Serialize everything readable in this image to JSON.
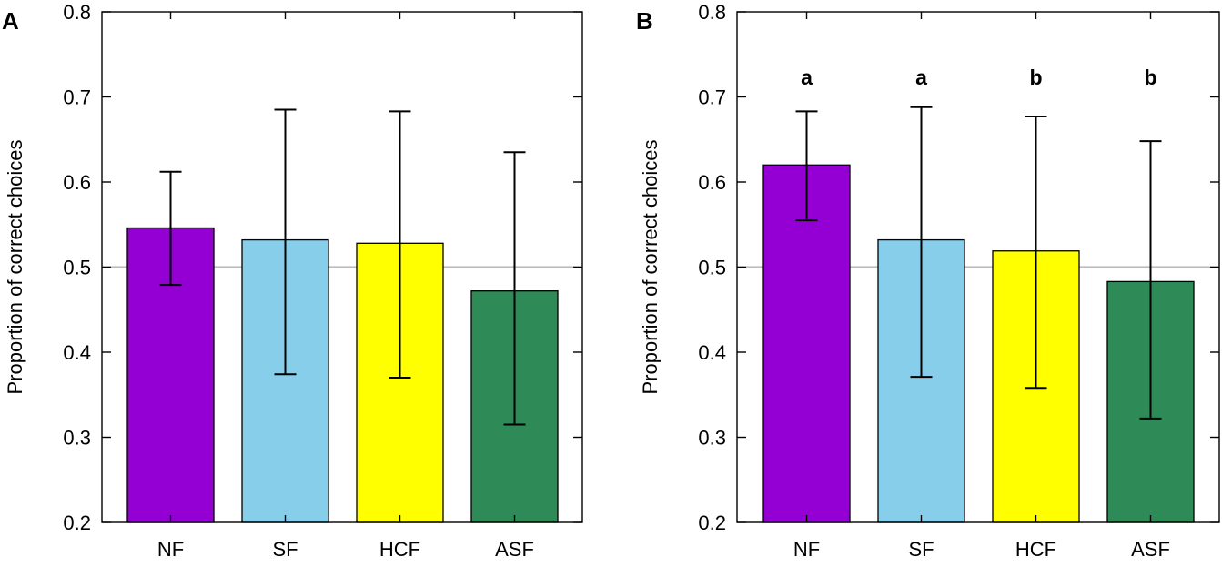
{
  "chart_data": [
    {
      "type": "bar",
      "panel_label": "A",
      "ylabel": "Proportion of correct choices",
      "xlabel": "",
      "ylim": [
        0.2,
        0.8
      ],
      "yticks": [
        "0.2",
        "0.3",
        "0.4",
        "0.5",
        "0.6",
        "0.7",
        "0.8"
      ],
      "reference_line": 0.5,
      "categories": [
        "NF",
        "SF",
        "HCF",
        "ASF"
      ],
      "values": [
        0.546,
        0.532,
        0.528,
        0.472
      ],
      "error_low": [
        0.479,
        0.374,
        0.37,
        0.315
      ],
      "error_high": [
        0.612,
        0.685,
        0.683,
        0.635
      ],
      "significance": [],
      "colors": [
        "#9400d3",
        "#87ceeb",
        "#ffff00",
        "#2e8b57"
      ]
    },
    {
      "type": "bar",
      "panel_label": "B",
      "ylabel": "Proportion of correct choices",
      "xlabel": "",
      "ylim": [
        0.2,
        0.8
      ],
      "yticks": [
        "0.2",
        "0.3",
        "0.4",
        "0.5",
        "0.6",
        "0.7",
        "0.8"
      ],
      "reference_line": 0.5,
      "categories": [
        "NF",
        "SF",
        "HCF",
        "ASF"
      ],
      "values": [
        0.62,
        0.532,
        0.519,
        0.483
      ],
      "error_low": [
        0.555,
        0.371,
        0.358,
        0.322
      ],
      "error_high": [
        0.683,
        0.688,
        0.677,
        0.648
      ],
      "significance": [
        "a",
        "a",
        "b",
        "b"
      ],
      "colors": [
        "#9400d3",
        "#87ceeb",
        "#ffff00",
        "#2e8b57"
      ]
    }
  ],
  "colors": {
    "axis": "#000000",
    "reference_line": "#bdbdbd",
    "bar_edge": "#000000"
  }
}
